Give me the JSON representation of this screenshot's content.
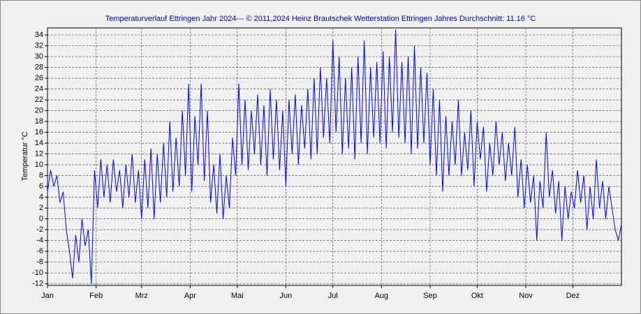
{
  "chart_data": {
    "type": "line",
    "title": "Temperaturverlauf Ettringen Jahr 2024--- © 2011,2024 Heinz Brautschek Wetterstation Ettringen Jahres Durchschnitt: 11.16 °C",
    "y_label": "Temperatur °C",
    "x": [
      0,
      2,
      4,
      6,
      8,
      10,
      12,
      14,
      16,
      18,
      20,
      22,
      24,
      26,
      28,
      30,
      32,
      34,
      36,
      38,
      40,
      42,
      44,
      46,
      48,
      50,
      52,
      54,
      56,
      58,
      60,
      62,
      64,
      66,
      68,
      70,
      72,
      74,
      76,
      78,
      80,
      82,
      84,
      86,
      88,
      90,
      92,
      94,
      96,
      98,
      100,
      102,
      104,
      106,
      108,
      110,
      112,
      114,
      116,
      118,
      120,
      122,
      124,
      126,
      128,
      130,
      132,
      134,
      136,
      138,
      140,
      142,
      144,
      146,
      148,
      150,
      152,
      154,
      156,
      158,
      160,
      162,
      164,
      166,
      168,
      170,
      172,
      174,
      176,
      178,
      180,
      182,
      184,
      186,
      188,
      190,
      192,
      194,
      196,
      198,
      200,
      202,
      204,
      206,
      208,
      210,
      212,
      214,
      216,
      218,
      220,
      222,
      224,
      226,
      228,
      230,
      232,
      234,
      236,
      238,
      240,
      242,
      244,
      246,
      248,
      250,
      252,
      254,
      256,
      258,
      260,
      262,
      264,
      266,
      268,
      270,
      272,
      274,
      276,
      278,
      280,
      282,
      284,
      286,
      288,
      290,
      292,
      294,
      296,
      298,
      300,
      302,
      304,
      306,
      308,
      310,
      312,
      314,
      316,
      318,
      320,
      322,
      324,
      326,
      328,
      330,
      332,
      334,
      336,
      338,
      340,
      342,
      344,
      346,
      348,
      350,
      352,
      354,
      356,
      358,
      360,
      362,
      364,
      366
    ],
    "series": [
      {
        "name": "Temperatur",
        "color": "#0000ff",
        "values": [
          5,
          9,
          6,
          8,
          3,
          5,
          -2,
          -6,
          -11,
          -3,
          -8,
          0,
          -5,
          -2,
          -12,
          9,
          2,
          11,
          4,
          10,
          3,
          11,
          5,
          9,
          2,
          10,
          4,
          12,
          3,
          9,
          0,
          11,
          2,
          13,
          0,
          12,
          3,
          14,
          4,
          18,
          5,
          15,
          6,
          20,
          8,
          25,
          5,
          19,
          10,
          25,
          7,
          20,
          3,
          10,
          1,
          12,
          0,
          8,
          2,
          15,
          8,
          25,
          10,
          22,
          9,
          20,
          12,
          23,
          10,
          21,
          8,
          24,
          11,
          22,
          9,
          20,
          6,
          22,
          12,
          23,
          10,
          21,
          13,
          24,
          11,
          26,
          12,
          28,
          15,
          26,
          14,
          33,
          16,
          30,
          12,
          26,
          13,
          28,
          11,
          30,
          14,
          33,
          12,
          28,
          15,
          29,
          14,
          31,
          13,
          30,
          16,
          35,
          15,
          29,
          14,
          30,
          12,
          32,
          13,
          28,
          14,
          27,
          10,
          24,
          8,
          22,
          5,
          19,
          8,
          18,
          10,
          22,
          8,
          16,
          9,
          20,
          6,
          18,
          11,
          17,
          5,
          14,
          8,
          18,
          10,
          16,
          7,
          14,
          8,
          17,
          4,
          11,
          2,
          10,
          3,
          8,
          -4,
          7,
          2,
          16,
          4,
          9,
          1,
          7,
          -4,
          6,
          0,
          5,
          2,
          9,
          3,
          8,
          -2,
          6,
          0,
          11,
          2,
          7,
          0,
          6,
          2,
          -2,
          -4,
          -1
        ]
      }
    ],
    "xlim": [
      0,
      366
    ],
    "xticks": [
      {
        "value": 0,
        "label": "Jan"
      },
      {
        "value": 31,
        "label": "Feb"
      },
      {
        "value": 60,
        "label": "Mrz"
      },
      {
        "value": 91,
        "label": "Apr"
      },
      {
        "value": 121,
        "label": "Mai"
      },
      {
        "value": 152,
        "label": "Jun"
      },
      {
        "value": 182,
        "label": "Jul"
      },
      {
        "value": 213,
        "label": "Aug"
      },
      {
        "value": 244,
        "label": "Sep"
      },
      {
        "value": 274,
        "label": "Okt"
      },
      {
        "value": 305,
        "label": "Nov"
      },
      {
        "value": 335,
        "label": "Dez"
      }
    ],
    "ylim": [
      -12.3,
      35.3
    ],
    "yticks": [
      -12,
      -10,
      -8,
      -6,
      -4,
      -2,
      0,
      2,
      4,
      6,
      8,
      10,
      12,
      14,
      16,
      18,
      20,
      22,
      24,
      26,
      28,
      30,
      32,
      34
    ],
    "grid": true
  }
}
